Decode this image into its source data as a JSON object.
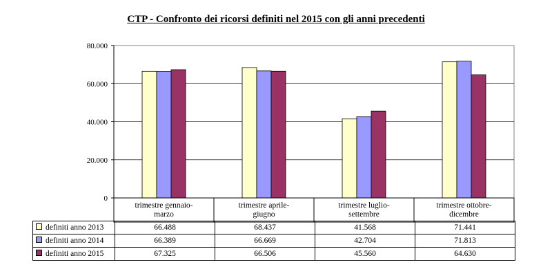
{
  "chart_data": {
    "type": "bar",
    "title": "CTP - Confronto dei ricorsi definiti nel 2015 con gli anni precedenti",
    "categories": [
      [
        "trimestre gennaio-",
        "marzo"
      ],
      [
        "trimestre aprile-",
        "giugno"
      ],
      [
        "trimestre luglio-",
        "settembre"
      ],
      [
        "trimestre ottobre-",
        "dicembre"
      ]
    ],
    "y_ticks": [
      "0",
      "20.000",
      "40.000",
      "60.000",
      "80.000"
    ],
    "ylim": [
      0,
      80000
    ],
    "grid": true,
    "legend": "table",
    "series": [
      {
        "name": "definiti anno 2013",
        "color": "#ffffcc",
        "values": [
          66488,
          68437,
          41568,
          71441
        ],
        "labels": [
          "66.488",
          "68.437",
          "41.568",
          "71.441"
        ]
      },
      {
        "name": "definiti anno 2014",
        "color": "#9999ff",
        "values": [
          66389,
          66669,
          42704,
          71813
        ],
        "labels": [
          "66.389",
          "66.669",
          "42.704",
          "71.813"
        ]
      },
      {
        "name": "definiti anno 2015",
        "color": "#993366",
        "values": [
          67325,
          66506,
          45560,
          64630
        ],
        "labels": [
          "67.325",
          "66.506",
          "45.560",
          "64.630"
        ]
      }
    ]
  }
}
